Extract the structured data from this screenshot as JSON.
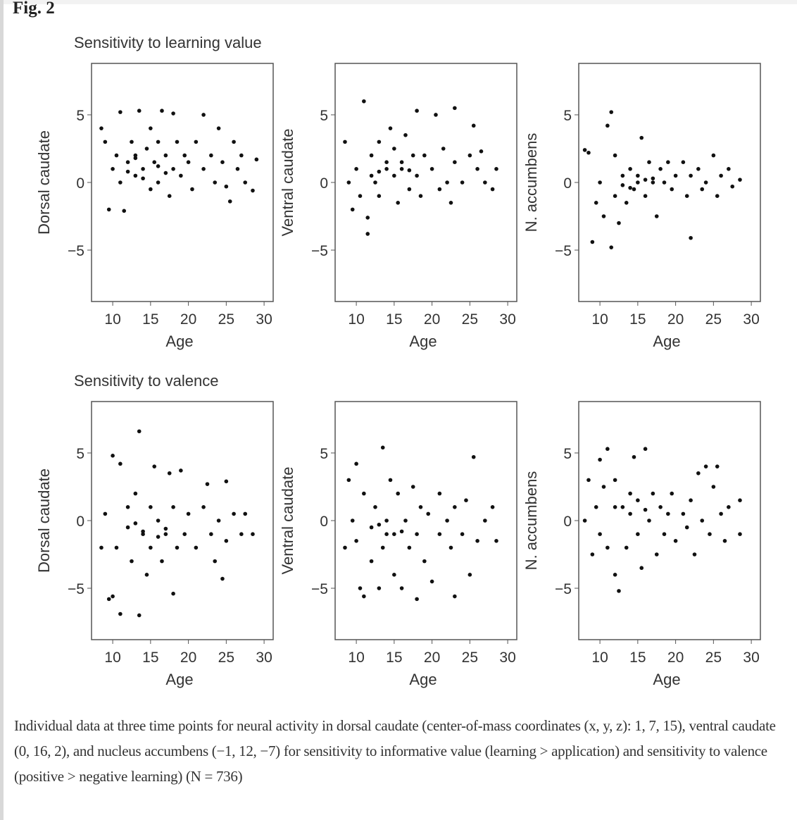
{
  "figure_label": "Fig. 2",
  "caption": "Individual data at three time points for neural activity in dorsal caudate (center-of-mass coordinates (x, y, z): 1, 7, 15), ventral caudate (0, 16, 2), and nucleus accumbens (−1, 12, −7) for sensitivity to informative value (learning > application) and sensitivity to valence (positive > negative learning) (N = 736)",
  "row_titles": [
    "Sensitivity to learning value",
    "Sensitivity to valence"
  ],
  "colors": {
    "point": "#111111",
    "axis": "#555555"
  },
  "chart_data": [
    {
      "type": "scatter",
      "row": 0,
      "col": 0,
      "xlabel": "Age",
      "ylabel": "Dorsal caudate",
      "xlim": [
        7.2,
        31.2
      ],
      "ylim": [
        -8.8,
        8.8
      ],
      "xticks": [
        10,
        15,
        20,
        25,
        30
      ],
      "yticks": [
        -5,
        0,
        5
      ],
      "points": [
        [
          8.5,
          4
        ],
        [
          9,
          3
        ],
        [
          9.5,
          -2
        ],
        [
          10,
          1
        ],
        [
          10.5,
          2
        ],
        [
          11,
          5.2
        ],
        [
          11.5,
          -2.1
        ],
        [
          11,
          0
        ],
        [
          12,
          1.5
        ],
        [
          12.5,
          3
        ],
        [
          13,
          2
        ],
        [
          13.5,
          5.3
        ],
        [
          13,
          0.5
        ],
        [
          14,
          1
        ],
        [
          14.5,
          2.5
        ],
        [
          15,
          4
        ],
        [
          15,
          -0.5
        ],
        [
          15.5,
          1.5
        ],
        [
          16,
          3
        ],
        [
          16.5,
          5.3
        ],
        [
          16,
          0
        ],
        [
          17,
          2
        ],
        [
          17.5,
          -1
        ],
        [
          18,
          5.1
        ],
        [
          18,
          1
        ],
        [
          18.5,
          3
        ],
        [
          19,
          0.5
        ],
        [
          19.5,
          2
        ],
        [
          20,
          1.5
        ],
        [
          20.5,
          -0.5
        ],
        [
          21,
          3
        ],
        [
          22,
          5
        ],
        [
          22,
          1
        ],
        [
          23,
          2
        ],
        [
          23.5,
          0
        ],
        [
          24,
          4
        ],
        [
          24.5,
          1.5
        ],
        [
          25,
          -0.3
        ],
        [
          25.5,
          -1.4
        ],
        [
          26,
          3
        ],
        [
          26.5,
          1
        ],
        [
          27,
          2
        ],
        [
          27.5,
          0
        ],
        [
          28.5,
          -0.6
        ],
        [
          29,
          1.7
        ],
        [
          12,
          0.8
        ],
        [
          14,
          0.3
        ],
        [
          16,
          1.2
        ],
        [
          13,
          1.8
        ],
        [
          17,
          0.7
        ]
      ]
    },
    {
      "type": "scatter",
      "row": 0,
      "col": 1,
      "xlabel": "Age",
      "ylabel": "Ventral caudate",
      "xlim": [
        7.2,
        31.2
      ],
      "ylim": [
        -8.8,
        8.8
      ],
      "xticks": [
        10,
        15,
        20,
        25,
        30
      ],
      "yticks": [
        -5,
        0,
        5
      ],
      "points": [
        [
          8.5,
          3
        ],
        [
          9,
          0
        ],
        [
          9.5,
          -2
        ],
        [
          10,
          1
        ],
        [
          10.5,
          -1
        ],
        [
          11,
          6
        ],
        [
          11.5,
          -2.6
        ],
        [
          11.5,
          -3.8
        ],
        [
          12,
          2
        ],
        [
          12.5,
          0
        ],
        [
          13,
          3
        ],
        [
          13,
          -1
        ],
        [
          14,
          1.5
        ],
        [
          14.5,
          4
        ],
        [
          15,
          0.5
        ],
        [
          15,
          2.5
        ],
        [
          15.5,
          -1.5
        ],
        [
          16,
          1
        ],
        [
          16.5,
          3.5
        ],
        [
          17,
          -0.5
        ],
        [
          17.5,
          2
        ],
        [
          18,
          5.3
        ],
        [
          18,
          0.5
        ],
        [
          18.5,
          -1
        ],
        [
          19,
          2
        ],
        [
          20,
          1
        ],
        [
          20.5,
          5
        ],
        [
          21,
          -0.5
        ],
        [
          21.5,
          2.5
        ],
        [
          22,
          0
        ],
        [
          22.5,
          -1.5
        ],
        [
          23,
          5.5
        ],
        [
          23,
          1.5
        ],
        [
          24,
          0
        ],
        [
          25,
          2
        ],
        [
          25.5,
          4.2
        ],
        [
          26,
          1
        ],
        [
          26.5,
          2.3
        ],
        [
          27,
          0
        ],
        [
          28,
          -0.5
        ],
        [
          28.5,
          1
        ],
        [
          12,
          0.5
        ],
        [
          14,
          1
        ],
        [
          16,
          1.5
        ],
        [
          13,
          0.8
        ],
        [
          17,
          0.9
        ]
      ]
    },
    {
      "type": "scatter",
      "row": 0,
      "col": 2,
      "xlabel": "Age",
      "ylabel": "N. accumbens",
      "xlim": [
        7.2,
        31.2
      ],
      "ylim": [
        -8.8,
        8.8
      ],
      "xticks": [
        10,
        15,
        20,
        25,
        30
      ],
      "yticks": [
        -5,
        0,
        5
      ],
      "points": [
        [
          8,
          2.4
        ],
        [
          8.5,
          2.2
        ],
        [
          9,
          -4.4
        ],
        [
          9.5,
          -1.5
        ],
        [
          10,
          0
        ],
        [
          10.5,
          -2.5
        ],
        [
          11,
          4.2
        ],
        [
          11.5,
          5.2
        ],
        [
          11.5,
          -4.8
        ],
        [
          12,
          2
        ],
        [
          12,
          -1
        ],
        [
          12.5,
          -3
        ],
        [
          13,
          0.5
        ],
        [
          13.5,
          -1.5
        ],
        [
          14,
          1
        ],
        [
          14.5,
          -0.5
        ],
        [
          15,
          0.5
        ],
        [
          15.5,
          3.3
        ],
        [
          16,
          -1
        ],
        [
          16.5,
          1.5
        ],
        [
          17,
          0
        ],
        [
          17.5,
          -2.5
        ],
        [
          18,
          1
        ],
        [
          18.5,
          0
        ],
        [
          19,
          1.5
        ],
        [
          19.5,
          -0.5
        ],
        [
          20,
          0.5
        ],
        [
          21,
          1.5
        ],
        [
          21.5,
          -1
        ],
        [
          22,
          -4.1
        ],
        [
          22,
          0.5
        ],
        [
          23,
          1
        ],
        [
          23.5,
          -0.5
        ],
        [
          24,
          0
        ],
        [
          25,
          2
        ],
        [
          25.5,
          -1
        ],
        [
          26,
          0.5
        ],
        [
          27,
          1
        ],
        [
          27.5,
          -0.3
        ],
        [
          28.5,
          0.2
        ],
        [
          13,
          -0.2
        ],
        [
          15,
          0
        ],
        [
          17,
          0.3
        ],
        [
          14,
          -0.4
        ],
        [
          16,
          0.2
        ]
      ]
    },
    {
      "type": "scatter",
      "row": 1,
      "col": 0,
      "xlabel": "Age",
      "ylabel": "Dorsal caudate",
      "xlim": [
        7.2,
        31.2
      ],
      "ylim": [
        -8.8,
        8.8
      ],
      "xticks": [
        10,
        15,
        20,
        25,
        30
      ],
      "yticks": [
        -5,
        0,
        5
      ],
      "points": [
        [
          8.5,
          -2
        ],
        [
          9,
          0.5
        ],
        [
          9.5,
          -5.8
        ],
        [
          10,
          4.8
        ],
        [
          10,
          -5.6
        ],
        [
          10.5,
          -2
        ],
        [
          11,
          4.2
        ],
        [
          11,
          -6.9
        ],
        [
          12,
          1
        ],
        [
          12.5,
          -3
        ],
        [
          13,
          2
        ],
        [
          13.5,
          6.6
        ],
        [
          13.5,
          -7
        ],
        [
          14,
          -1
        ],
        [
          14.5,
          -4
        ],
        [
          15,
          1
        ],
        [
          15,
          -2
        ],
        [
          15.5,
          4
        ],
        [
          16,
          0
        ],
        [
          16.5,
          -3
        ],
        [
          17,
          -1
        ],
        [
          17.5,
          3.5
        ],
        [
          18,
          -5.4
        ],
        [
          18,
          1
        ],
        [
          18.5,
          -2
        ],
        [
          19,
          3.7
        ],
        [
          19.5,
          -1
        ],
        [
          20,
          0.5
        ],
        [
          21,
          -2
        ],
        [
          22,
          1
        ],
        [
          22.5,
          2.7
        ],
        [
          23,
          -1
        ],
        [
          23.5,
          -3
        ],
        [
          24,
          0
        ],
        [
          24.5,
          -4.3
        ],
        [
          25,
          2.9
        ],
        [
          25,
          -1.5
        ],
        [
          26,
          0.5
        ],
        [
          27,
          -1
        ],
        [
          27.5,
          0.5
        ],
        [
          28.5,
          -1
        ],
        [
          12,
          -0.5
        ],
        [
          14,
          -0.8
        ],
        [
          16,
          -1.2
        ],
        [
          13,
          -0.2
        ],
        [
          17,
          -0.6
        ]
      ]
    },
    {
      "type": "scatter",
      "row": 1,
      "col": 1,
      "xlabel": "Age",
      "ylabel": "Ventral caudate",
      "xlim": [
        7.2,
        31.2
      ],
      "ylim": [
        -8.8,
        8.8
      ],
      "xticks": [
        10,
        15,
        20,
        25,
        30
      ],
      "yticks": [
        -5,
        0,
        5
      ],
      "points": [
        [
          8.5,
          -2
        ],
        [
          9,
          3
        ],
        [
          9.5,
          0
        ],
        [
          10,
          4.2
        ],
        [
          10,
          -1.5
        ],
        [
          10.5,
          -5
        ],
        [
          11,
          -5.6
        ],
        [
          11,
          2
        ],
        [
          12,
          -3
        ],
        [
          12.5,
          1
        ],
        [
          13,
          -5
        ],
        [
          13.5,
          5.4
        ],
        [
          13.5,
          -2
        ],
        [
          14,
          0
        ],
        [
          14.5,
          3
        ],
        [
          15,
          -4
        ],
        [
          15,
          -1
        ],
        [
          15.5,
          2
        ],
        [
          16,
          -5
        ],
        [
          16.5,
          0
        ],
        [
          17,
          -2
        ],
        [
          17.5,
          2.5
        ],
        [
          18,
          -5.8
        ],
        [
          18,
          -1
        ],
        [
          18.5,
          1
        ],
        [
          19,
          -3
        ],
        [
          19.5,
          0.5
        ],
        [
          20,
          -4.5
        ],
        [
          21,
          2
        ],
        [
          21,
          -1
        ],
        [
          22,
          0
        ],
        [
          22.5,
          -2
        ],
        [
          23,
          -5.6
        ],
        [
          23,
          1
        ],
        [
          24,
          -1
        ],
        [
          24.5,
          1.5
        ],
        [
          25,
          -4
        ],
        [
          25.5,
          4.7
        ],
        [
          26,
          -1.5
        ],
        [
          27,
          0
        ],
        [
          28,
          1
        ],
        [
          28.5,
          -1.5
        ],
        [
          12,
          -0.5
        ],
        [
          14,
          -1
        ],
        [
          16,
          -0.8
        ],
        [
          13,
          -0.3
        ]
      ]
    },
    {
      "type": "scatter",
      "row": 1,
      "col": 2,
      "xlabel": "Age",
      "ylabel": "N. accumbens",
      "xlim": [
        7.2,
        31.2
      ],
      "ylim": [
        -8.8,
        8.8
      ],
      "xticks": [
        10,
        15,
        20,
        25,
        30
      ],
      "yticks": [
        -5,
        0,
        5
      ],
      "points": [
        [
          8,
          0
        ],
        [
          8.5,
          3
        ],
        [
          9,
          -2.5
        ],
        [
          9.5,
          1
        ],
        [
          10,
          4.5
        ],
        [
          10,
          -1
        ],
        [
          10.5,
          2.5
        ],
        [
          11,
          5.3
        ],
        [
          11,
          -2
        ],
        [
          12,
          3
        ],
        [
          12,
          -4
        ],
        [
          12.5,
          -5.2
        ],
        [
          13,
          1
        ],
        [
          13.5,
          -2
        ],
        [
          14,
          2
        ],
        [
          14.5,
          4.7
        ],
        [
          15,
          -1
        ],
        [
          15,
          1.5
        ],
        [
          15.5,
          -3.5
        ],
        [
          16,
          5.3
        ],
        [
          16.5,
          0
        ],
        [
          17,
          2
        ],
        [
          17.5,
          -2.5
        ],
        [
          18,
          1
        ],
        [
          18.5,
          -1
        ],
        [
          19,
          0.5
        ],
        [
          19.5,
          2
        ],
        [
          20,
          -1.5
        ],
        [
          21,
          0.5
        ],
        [
          21.5,
          -0.5
        ],
        [
          22,
          1.5
        ],
        [
          22.5,
          -2.5
        ],
        [
          23,
          3.5
        ],
        [
          23.5,
          0
        ],
        [
          24,
          4
        ],
        [
          24.5,
          -1
        ],
        [
          25,
          2.5
        ],
        [
          25.5,
          4
        ],
        [
          26,
          0.5
        ],
        [
          26.5,
          -1.5
        ],
        [
          27,
          1
        ],
        [
          28.5,
          1.5
        ],
        [
          28.5,
          -1
        ],
        [
          12,
          1
        ],
        [
          14,
          0.5
        ],
        [
          16,
          0.8
        ]
      ]
    }
  ]
}
